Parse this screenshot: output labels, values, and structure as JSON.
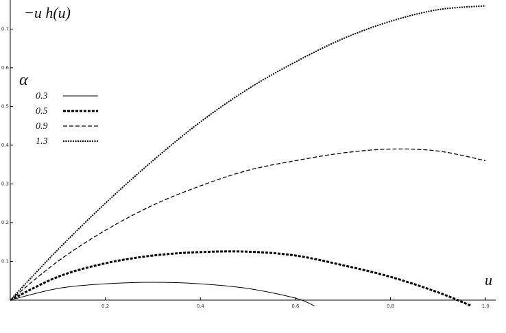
{
  "chart_data": {
    "type": "line",
    "x_label": "u",
    "y_label": "−u h(u)",
    "legend_title": "α",
    "xlim": [
      -0.0216,
      1.043
    ],
    "ylim": [
      -0.085,
      0.775
    ],
    "xticks": [
      0.2,
      0.4,
      0.6,
      0.8,
      {
        "value": 1,
        "label": "1.0"
      }
    ],
    "yticks": [
      0.1,
      0.2,
      0.3,
      0.4,
      0.5,
      0.6,
      0.7
    ],
    "series": [
      {
        "name": "0.3",
        "color": "#000000",
        "dash": "none",
        "width": 1,
        "x": [
          0,
          0.1,
          0.2,
          0.3,
          0.4,
          0.5,
          0.6,
          0.64
        ],
        "values": [
          0,
          0.03,
          0.042,
          0.046,
          0.042,
          0.03,
          0.005,
          -0.015
        ]
      },
      {
        "name": "0.5",
        "color": "#000000",
        "dash": "4 2",
        "width": 3,
        "x": [
          0,
          0.1,
          0.2,
          0.3,
          0.4,
          0.5,
          0.6,
          0.7,
          0.8,
          0.9,
          0.97
        ],
        "values": [
          0,
          0.06,
          0.095,
          0.115,
          0.124,
          0.125,
          0.115,
          0.09,
          0.06,
          0.02,
          -0.015
        ]
      },
      {
        "name": "0.9",
        "color": "#000000",
        "dash": "6 3",
        "width": 1.3,
        "x": [
          0,
          0.1,
          0.2,
          0.3,
          0.4,
          0.5,
          0.6,
          0.7,
          0.8,
          0.9,
          1.0
        ],
        "values": [
          0,
          0.1,
          0.18,
          0.245,
          0.295,
          0.335,
          0.36,
          0.38,
          0.39,
          0.385,
          0.36
        ]
      },
      {
        "name": "1.3",
        "color": "#000000",
        "dash": "2 1.5",
        "width": 2,
        "x": [
          0,
          0.1,
          0.2,
          0.3,
          0.4,
          0.5,
          0.6,
          0.7,
          0.8,
          0.9,
          1.0
        ],
        "values": [
          0,
          0.13,
          0.25,
          0.36,
          0.46,
          0.545,
          0.615,
          0.675,
          0.72,
          0.75,
          0.76
        ]
      }
    ]
  }
}
